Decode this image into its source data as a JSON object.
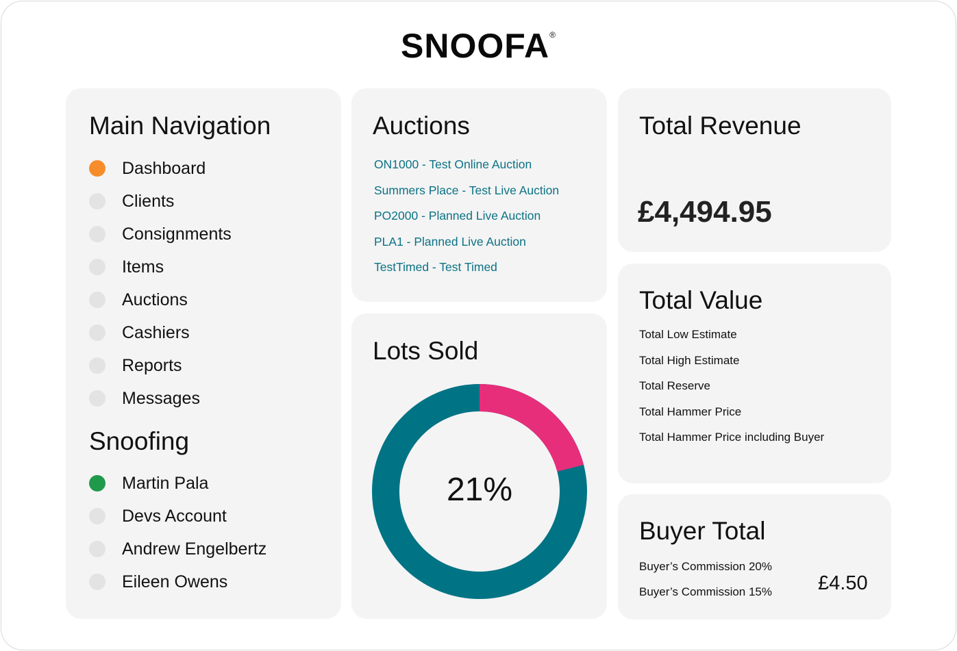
{
  "brand": {
    "name": "SNOOFA",
    "reg": "®"
  },
  "nav": {
    "title": "Main Navigation",
    "items": [
      {
        "label": "Dashboard",
        "active": true
      },
      {
        "label": "Clients"
      },
      {
        "label": "Consignments"
      },
      {
        "label": "Items"
      },
      {
        "label": "Auctions"
      },
      {
        "label": "Cashiers"
      },
      {
        "label": "Reports"
      },
      {
        "label": "Messages"
      }
    ]
  },
  "snoofing": {
    "title": "Snoofing",
    "users": [
      {
        "label": "Martin Pala",
        "active": true
      },
      {
        "label": "Devs Account"
      },
      {
        "label": "Andrew Engelbertz"
      },
      {
        "label": "Eileen Owens"
      }
    ]
  },
  "auctions": {
    "title": "Auctions",
    "items": [
      "ON1000 - Test Online Auction",
      "Summers Place - Test Live Auction",
      "PO2000 - Planned Live Auction",
      "PLA1 - Planned Live Auction",
      "TestTimed - Test Timed"
    ]
  },
  "lots_sold": {
    "title": "Lots Sold",
    "label": "21%",
    "percent": 21,
    "colors": {
      "sold": "#e62e7b",
      "rest": "#007385"
    }
  },
  "revenue": {
    "title": "Total Revenue",
    "value": "£4,494.95"
  },
  "total_value": {
    "title": "Total Value",
    "rows": [
      "Total Low Estimate",
      "Total High Estimate",
      "Total Reserve",
      "Total Hammer Price",
      "Total Hammer Price including Buyer"
    ]
  },
  "buyer_total": {
    "title": "Buyer Total",
    "rows": [
      "Buyer’s Commission 20%",
      "Buyer’s Commission 15%"
    ],
    "value": "£4.50"
  },
  "colors": {
    "active_dot": "#f78c2a",
    "user_dot": "#1f9a4b",
    "link": "#0b7285"
  }
}
